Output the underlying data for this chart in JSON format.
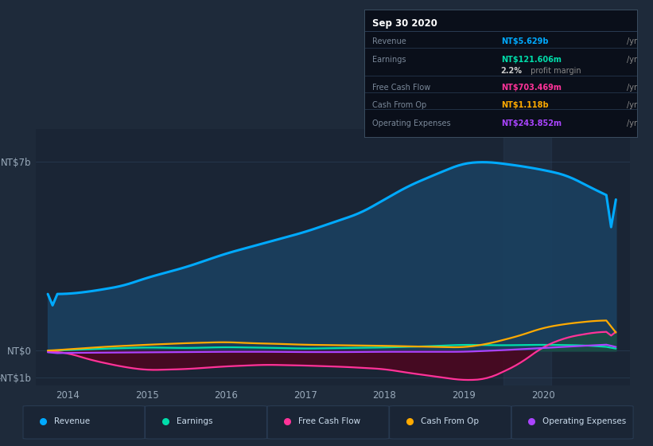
{
  "bg_color": "#1e2a3a",
  "plot_bg_color": "#1a2535",
  "grid_color": "#2a3d55",
  "title_text": "Sep 30 2020",
  "ylim": [
    -1300000000.0,
    8200000000.0
  ],
  "ylabel_ticks": [
    {
      "val": 7000000000.0,
      "label": "NT$7b"
    },
    {
      "val": 0,
      "label": "NT$0"
    },
    {
      "val": -1000000000.0,
      "label": "-NT$1b"
    }
  ],
  "xlim": [
    2013.6,
    2021.1
  ],
  "xticks": [
    2014,
    2015,
    2016,
    2017,
    2018,
    2019,
    2020
  ],
  "revenue_color": "#00aaff",
  "earnings_color": "#00ddaa",
  "fcf_color": "#ff3399",
  "cashop_color": "#ffaa00",
  "opex_color": "#aa44ff",
  "revenue_fill_color": "#1a4060",
  "fcf_fill_color": "#4a0820",
  "legend_items": [
    {
      "label": "Revenue",
      "color": "#00aaff"
    },
    {
      "label": "Earnings",
      "color": "#00ddaa"
    },
    {
      "label": "Free Cash Flow",
      "color": "#ff3399"
    },
    {
      "label": "Cash From Op",
      "color": "#ffaa00"
    },
    {
      "label": "Operating Expenses",
      "color": "#aa44ff"
    }
  ],
  "info_rows": [
    {
      "label": "Revenue",
      "value": "NT$5.629b",
      "unit": "/yr",
      "value_color": "#00aaff",
      "bold": false
    },
    {
      "label": "Earnings",
      "value": "NT$121.606m",
      "unit": "/yr",
      "value_color": "#00ddaa",
      "bold": false
    },
    {
      "label": "",
      "value": "2.2%",
      "unit": " profit margin",
      "value_color": "#ffffff",
      "bold": true
    },
    {
      "label": "Free Cash Flow",
      "value": "NT$703.469m",
      "unit": "/yr",
      "value_color": "#ff3399",
      "bold": false
    },
    {
      "label": "Cash From Op",
      "value": "NT$1.118b",
      "unit": "/yr",
      "value_color": "#ffaa00",
      "bold": false
    },
    {
      "label": "Operating Expenses",
      "value": "NT$243.852m",
      "unit": "/yr",
      "value_color": "#aa44ff",
      "bold": false
    }
  ]
}
